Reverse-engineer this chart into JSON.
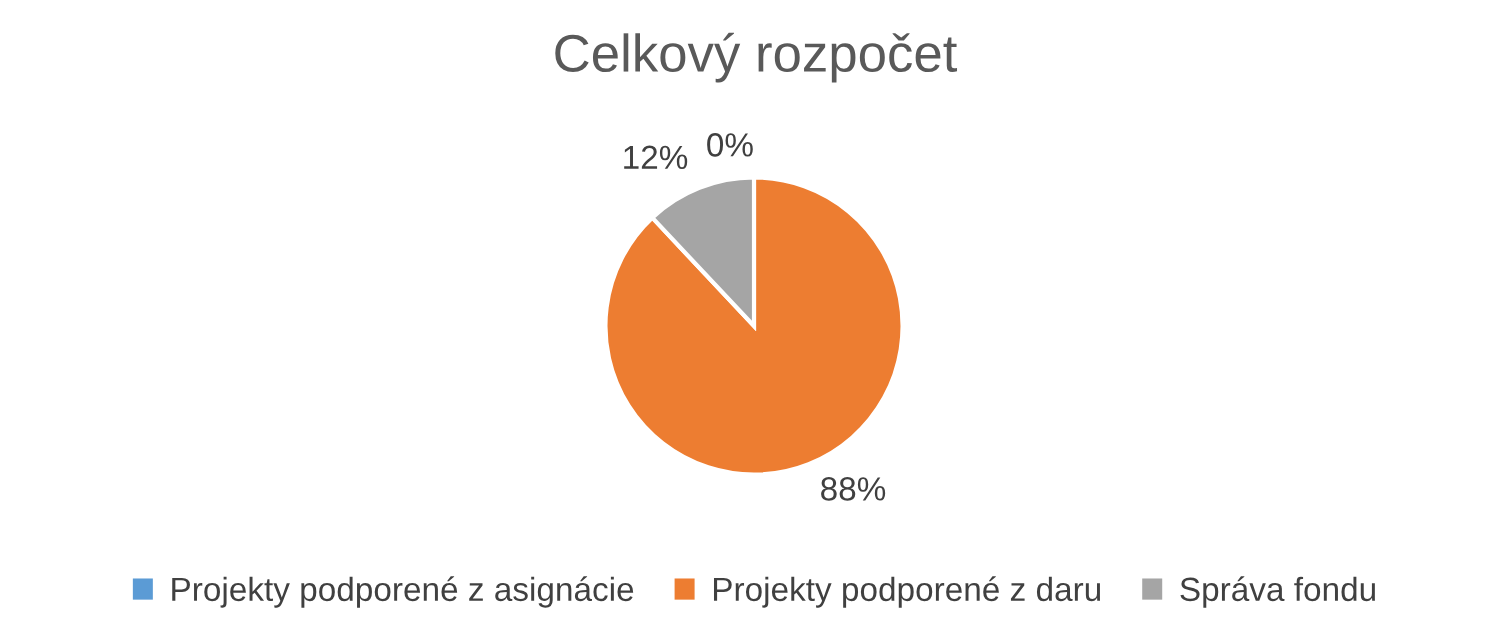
{
  "chart_data": {
    "type": "pie",
    "title": "Celkový rozpočet",
    "categories": [
      "Projekty podporené z asignácie",
      "Projekty podporené z daru",
      "Správa fondu"
    ],
    "values": [
      0,
      88,
      12
    ],
    "colors": [
      "#5b9bd5",
      "#ed7d31",
      "#a5a5a5"
    ],
    "value_labels": [
      "0%",
      "88%",
      "12%"
    ],
    "legend": "bottom"
  }
}
